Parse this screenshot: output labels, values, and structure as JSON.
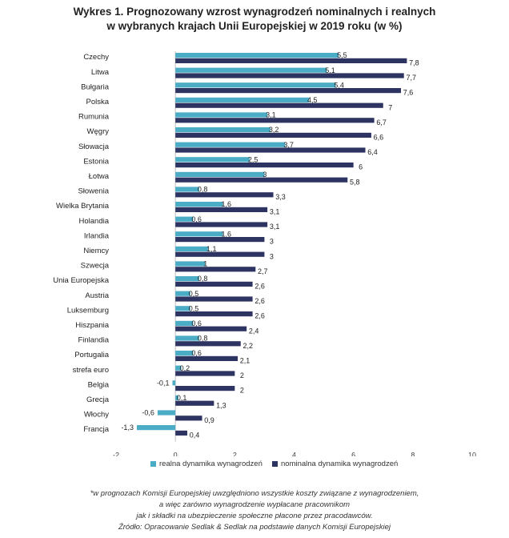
{
  "chart_data": {
    "type": "bar",
    "orientation": "horizontal",
    "title_line1": "Wykres 1. Prognozowany wzrost wynagrodzeń nominalnych i realnych",
    "title_line2": "w wybranych krajach Unii Europejskiej w 2019 roku (w %)",
    "categories": [
      "Czechy",
      "Litwa",
      "Bułgaria",
      "Polska",
      "Rumunia",
      "Węgry",
      "Słowacja",
      "Estonia",
      "Łotwa",
      "Słowenia",
      "Wielka Brytania",
      "Holandia",
      "Irlandia",
      "Niemcy",
      "Szwecja",
      "Unia Europejska",
      "Austria",
      "Luksemburg",
      "Hiszpania",
      "Finlandia",
      "Portugalia",
      "strefa euro",
      "Belgia",
      "Grecja",
      "Włochy",
      "Francja"
    ],
    "series": [
      {
        "name": "realna dynamika wynagrodzeń",
        "color": "#4bacc6",
        "values": [
          5.5,
          5.1,
          5.4,
          4.5,
          3.1,
          3.2,
          3.7,
          2.5,
          3,
          0.8,
          1.6,
          0.6,
          1.6,
          1.1,
          1,
          0.8,
          0.5,
          0.5,
          0.6,
          0.8,
          0.6,
          0.2,
          -0.1,
          0.1,
          -0.6,
          -1.3
        ],
        "labels": [
          "5,5",
          "5,1",
          "5,4",
          "4,5",
          "3,1",
          "3,2",
          "3,7",
          "2,5",
          "3",
          "0,8",
          "1,6",
          "0,6",
          "1,6",
          "1,1",
          "1",
          "0,8",
          "0,5",
          "0,5",
          "0,6",
          "0,8",
          "0,6",
          "0,2",
          "-0,1",
          "0,1",
          "-0,6",
          "-1,3"
        ]
      },
      {
        "name": "nominalna dynamika wynagrodzeń",
        "color": "#2e3461",
        "values": [
          7.8,
          7.7,
          7.6,
          7,
          6.7,
          6.6,
          6.4,
          6,
          5.8,
          3.3,
          3.1,
          3.1,
          3,
          3,
          2.7,
          2.6,
          2.6,
          2.6,
          2.4,
          2.2,
          2.1,
          2,
          2,
          1.3,
          0.9,
          0.4
        ],
        "labels": [
          "7,8",
          "7,7",
          "7,6",
          "7",
          "6,7",
          "6,6",
          "6,4",
          "6",
          "5,8",
          "3,3",
          "3,1",
          "3,1",
          "3",
          "3",
          "2,7",
          "2,6",
          "2,6",
          "2,6",
          "2,4",
          "2,2",
          "2,1",
          "2",
          "2",
          "1,3",
          "0,9",
          "0,4"
        ]
      }
    ],
    "xlim": [
      -2,
      10
    ],
    "xticks": [
      -2,
      0,
      2,
      4,
      6,
      8,
      10
    ],
    "xtick_labels": [
      "-2",
      "0",
      "2",
      "4",
      "6",
      "8",
      "10"
    ],
    "legend_position": "bottom",
    "footnote": [
      "*w prognozach Komisji Europejskiej uwzględniono wszystkie koszty związane z wynagrodzeniem,",
      "a więc zarówno wynagrodzenie wypłacane pracownikom",
      "jak i składki na ubezpieczenie społeczne płacone przez pracodawców.",
      "Źródło: Opracowanie Sedlak & Sedlak na podstawie danych Komisji Europejskiej"
    ]
  }
}
